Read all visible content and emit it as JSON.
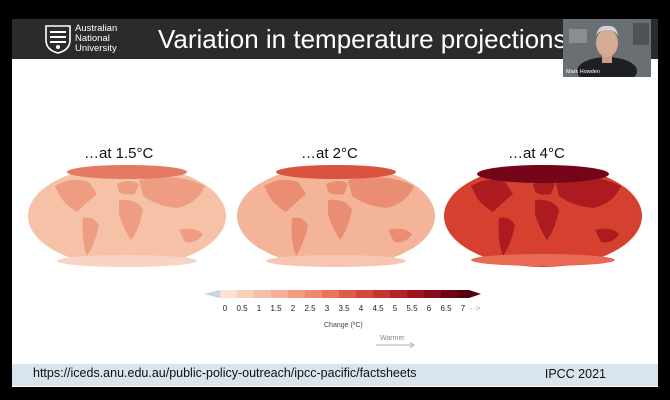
{
  "header": {
    "logo_lines": [
      "Australian",
      "National",
      "University"
    ],
    "title": "Variation in temperature projections"
  },
  "webcam": {
    "name": "Mark Howden"
  },
  "maps": [
    {
      "label": "…at 1.5°C",
      "fill": "#f5c2a8"
    },
    {
      "label": "…at 2°C",
      "fill": "#f3b499"
    },
    {
      "label": "…at 4°C",
      "fill": "#d6402f"
    }
  ],
  "legend": {
    "ticks": [
      "0",
      "0.5",
      "1",
      "1.5",
      "2",
      "2.5",
      "3",
      "3.5",
      "4",
      "4.5",
      "5",
      "5.5",
      "6",
      "6.5",
      "7"
    ],
    "more_symbol": "···>",
    "title": "Change (ºC)",
    "warmer_label": "Warmer",
    "colors": [
      "#fbe1d4",
      "#f9d0bd",
      "#f7bfa7",
      "#f5ad93",
      "#f29b80",
      "#ef886e",
      "#e9735c",
      "#e05c4a",
      "#d5473b",
      "#c6342e",
      "#b42325",
      "#9f151f",
      "#880b1b",
      "#6d0416",
      "#520010"
    ]
  },
  "footer": {
    "url": "https://iceds.anu.edu.au/public-policy-outreach/ipcc-pacific/factsheets",
    "credit": "IPCC 2021"
  }
}
